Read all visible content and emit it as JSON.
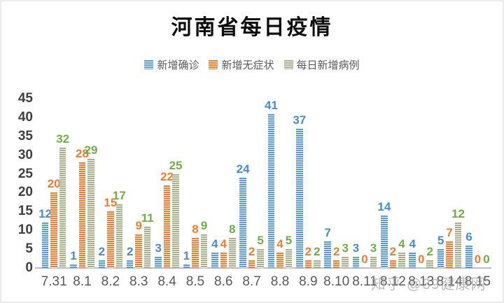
{
  "title": "河南省每日疫情",
  "watermark": "知乎 @39健康网",
  "colors": {
    "confirmed_blue": "#5B9BD5",
    "asymptomatic_orange": "#ED7D31",
    "daily_new_green_bar": "#A6B08C",
    "daily_new_green_label": "#70AD47",
    "axis_line": "#BFBFBF",
    "axis_text": "#404040",
    "xlabel_text": "#595959"
  },
  "chart_data": {
    "type": "bar",
    "title": "河南省每日疫情",
    "xlabel": "",
    "ylabel": "",
    "ylim": [
      0,
      45
    ],
    "yticks": [
      0,
      5,
      10,
      15,
      20,
      25,
      30,
      35,
      40,
      45
    ],
    "grid": false,
    "legend_position": "top",
    "categories": [
      "7.31",
      "8.1",
      "8.2",
      "8.3",
      "8.4",
      "8.5",
      "8.6",
      "8.7",
      "8.8",
      "8.9",
      "8.10",
      "8.11",
      "8.12",
      "8.13",
      "8.14",
      "8.15"
    ],
    "series": [
      {
        "name": "新增确诊",
        "bar_color": "#5B9BD5",
        "label_color": "#4A8BC9",
        "values": [
          12,
          1,
          2,
          2,
          3,
          1,
          4,
          24,
          41,
          37,
          7,
          3,
          14,
          4,
          5,
          6
        ]
      },
      {
        "name": "新增无症状",
        "bar_color": "#ED7D31",
        "label_color": "#ED7D31",
        "values": [
          20,
          28,
          15,
          9,
          22,
          8,
          4,
          2,
          4,
          2,
          2,
          0,
          2,
          0,
          7,
          0
        ]
      },
      {
        "name": "每日新增病例",
        "bar_color": "#A6B08C",
        "label_color": "#70AD47",
        "values": [
          32,
          29,
          17,
          11,
          25,
          9,
          8,
          5,
          5,
          2,
          3,
          3,
          4,
          2,
          12,
          0
        ]
      }
    ]
  }
}
